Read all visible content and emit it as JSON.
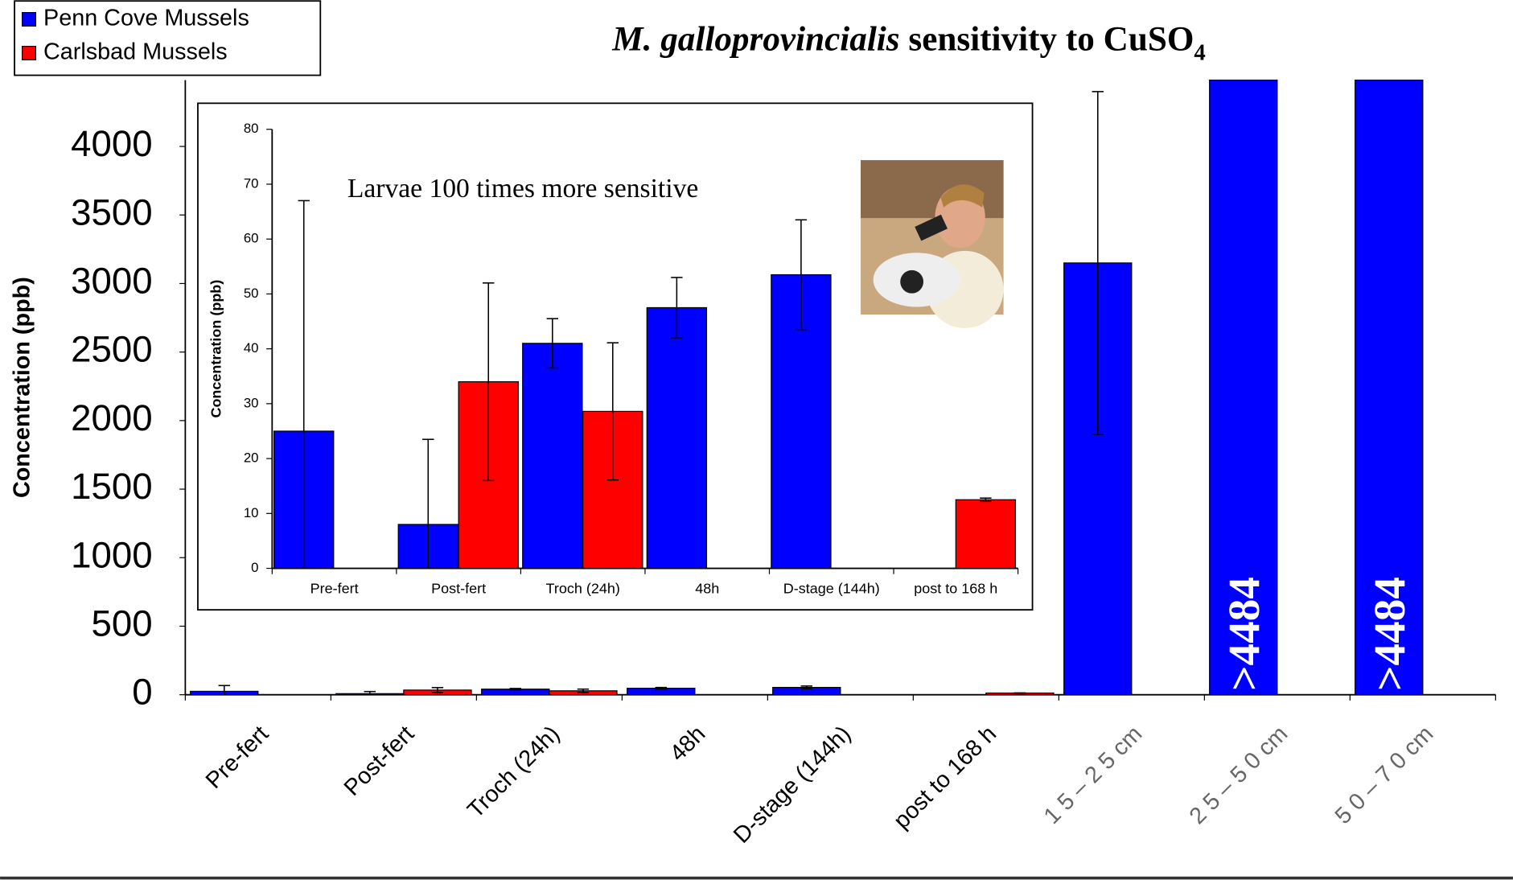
{
  "chart_data": [
    {
      "type": "bar",
      "title": [
        "M. galloprovincialis",
        " sensitivity to CuSO",
        "4"
      ],
      "y_label": "Concentration (ppb)",
      "categories": [
        "Pre-fert",
        "Post-fert",
        "Troch (24h)",
        "48h",
        "D-stage (144h)",
        "post to 168 h",
        "1 5 – 2 5 cm",
        "2 5 – 5 0 cm",
        "5 0 – 7 0 cm"
      ],
      "series": [
        {
          "name": "Penn Cove Mussels",
          "color": "#0000ff",
          "values": [
            25,
            8,
            41,
            47.5,
            53.5,
            null,
            3150,
            4484,
            4484
          ],
          "errors": [
            42,
            15.5,
            4.5,
            5.5,
            10,
            null,
            1250,
            null,
            null
          ],
          "value_labels": [
            null,
            null,
            null,
            null,
            null,
            null,
            null,
            ">4484",
            ">4484"
          ]
        },
        {
          "name": "Carlsbad Mussels",
          "color": "#ff0000",
          "values": [
            null,
            34,
            28.6,
            null,
            null,
            12.5,
            null,
            null,
            null
          ],
          "errors": [
            null,
            18,
            12.5,
            null,
            null,
            0.3,
            null,
            null,
            null
          ]
        }
      ],
      "ylim": [
        0,
        4484
      ],
      "yticks": [
        0,
        500,
        1000,
        1500,
        2000,
        2500,
        3000,
        3500,
        4000
      ],
      "grid": false,
      "legend": "top-left"
    },
    {
      "type": "bar",
      "annotation": "Larvae 100 times more sensitive",
      "y_label": "Concentration (ppb)",
      "categories": [
        "Pre-fert",
        "Post-fert",
        "Troch (24h)",
        "48h",
        "D-stage (144h)",
        "post to 168 h"
      ],
      "series": [
        {
          "name": "Penn Cove Mussels",
          "color": "#0000ff",
          "values": [
            25,
            8,
            41,
            47.5,
            53.5,
            null
          ],
          "errors": [
            42,
            15.5,
            4.5,
            5.5,
            10,
            null
          ]
        },
        {
          "name": "Carlsbad Mussels",
          "color": "#ff0000",
          "values": [
            null,
            34,
            28.6,
            null,
            null,
            12.5
          ],
          "errors": [
            null,
            18,
            12.5,
            null,
            null,
            0.3
          ]
        }
      ],
      "ylim": [
        0,
        80
      ],
      "yticks": [
        0,
        10,
        20,
        30,
        40,
        50,
        60,
        70,
        80
      ],
      "grid": false
    }
  ]
}
